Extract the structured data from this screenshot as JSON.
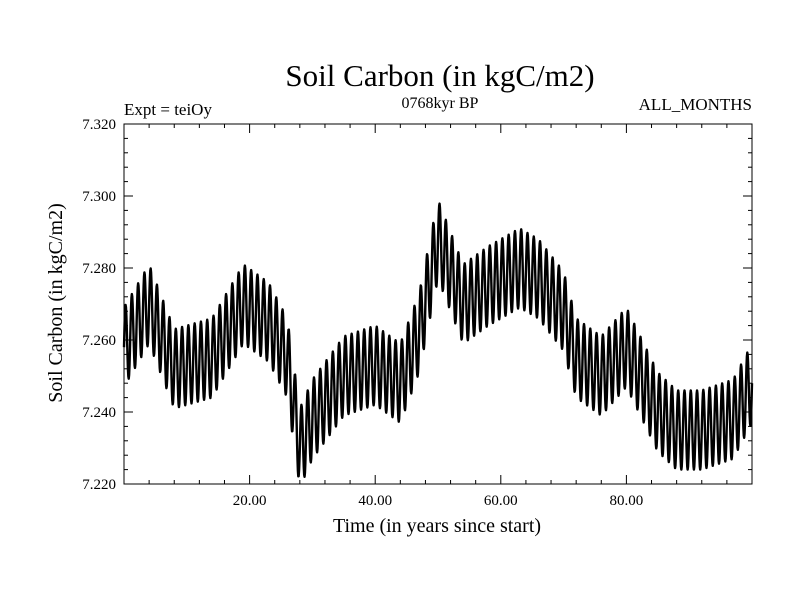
{
  "chart_data": {
    "type": "line",
    "title": "Soil Carbon (in kgC/m2)",
    "subtitle": "0768kyr BP",
    "experiment_label": "Expt = teiOy",
    "period_label": "ALL_MONTHS",
    "xlabel": "Time (in years since start)",
    "ylabel": "Soil Carbon (in kgC/m2)",
    "xlim": [
      0,
      100
    ],
    "ylim": [
      7.22,
      7.32
    ],
    "xticks": [
      20,
      40,
      60,
      80
    ],
    "xtick_labels": [
      "20.00",
      "40.00",
      "60.00",
      "80.00"
    ],
    "yticks": [
      7.22,
      7.24,
      7.26,
      7.28,
      7.3,
      7.32
    ],
    "ytick_labels": [
      "7.220",
      "7.240",
      "7.260",
      "7.280",
      "7.300",
      "7.320"
    ],
    "grid": false,
    "series": [
      {
        "name": "Soil Carbon",
        "color": "#000000",
        "seasonal_amplitude": 0.011,
        "cycle_length_years": 1,
        "annual_mean_baseline": {
          "x": [
            0,
            4,
            8,
            14,
            19,
            23,
            26,
            28,
            30,
            35,
            40,
            44,
            47,
            50,
            54,
            58,
            63,
            66,
            70,
            72,
            76,
            80,
            85,
            88,
            92,
            97,
            100
          ],
          "y": [
            7.258,
            7.27,
            7.252,
            7.255,
            7.27,
            7.265,
            7.255,
            7.23,
            7.238,
            7.25,
            7.253,
            7.248,
            7.262,
            7.288,
            7.27,
            7.275,
            7.28,
            7.277,
            7.268,
            7.255,
            7.25,
            7.258,
            7.24,
            7.235,
            7.235,
            7.238,
            7.248
          ]
        }
      }
    ]
  }
}
